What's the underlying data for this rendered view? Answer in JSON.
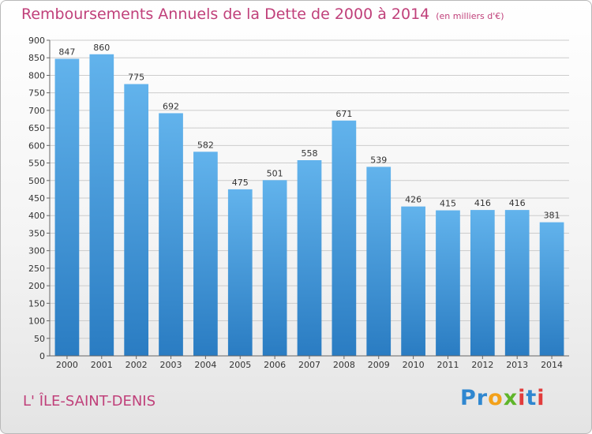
{
  "title": "Remboursements Annuels de la Dette de 2000 à 2014",
  "subtitle": "(en milliers d'€)",
  "commune": "L' ÎLE-SAINT-DENIS",
  "logo": {
    "letters": [
      "P",
      "r",
      "o",
      "x",
      "i",
      "t",
      "i"
    ],
    "colors": [
      "#2f87d0",
      "#2f87d0",
      "#f3a11a",
      "#5fb52a",
      "#e23c3c",
      "#2f87d0",
      "#e23c3c"
    ]
  },
  "colors": {
    "bar_top": "#62b3ec",
    "bar_bottom": "#2a7cc2",
    "title": "#c0407a",
    "grid": "#cccccc"
  },
  "chart_data": {
    "type": "bar",
    "title": "Remboursements Annuels de la Dette de 2000 à 2014",
    "xlabel": "",
    "ylabel": "",
    "categories": [
      "2000",
      "2001",
      "2002",
      "2003",
      "2004",
      "2005",
      "2006",
      "2007",
      "2008",
      "2009",
      "2010",
      "2011",
      "2012",
      "2013",
      "2014"
    ],
    "values": [
      847,
      860,
      775,
      692,
      582,
      475,
      501,
      558,
      671,
      539,
      426,
      415,
      416,
      416,
      381
    ],
    "ylim": [
      0,
      900
    ],
    "yticks": [
      0,
      50,
      100,
      150,
      200,
      250,
      300,
      350,
      400,
      450,
      500,
      550,
      600,
      650,
      700,
      750,
      800,
      850,
      900
    ],
    "grid": true
  }
}
